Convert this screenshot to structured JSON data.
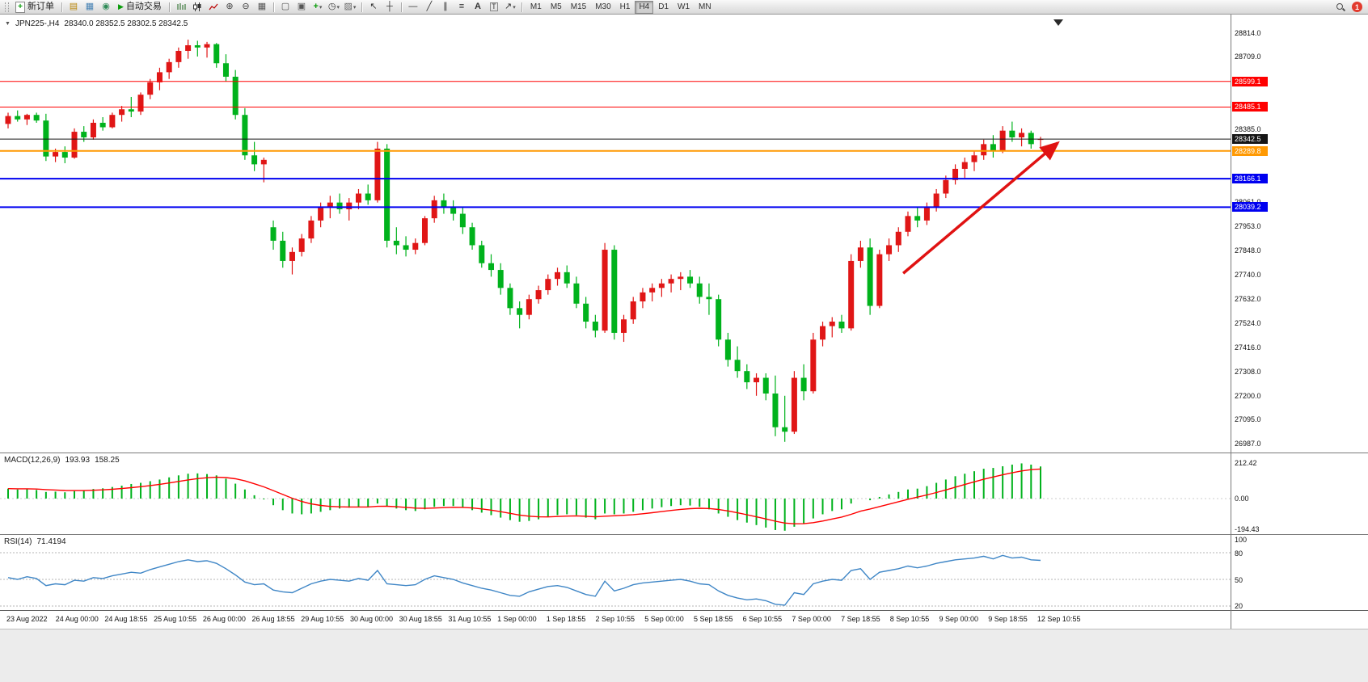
{
  "toolbar": {
    "new_order_label": "新订单",
    "autotrading_label": "自动交易",
    "timeframes": [
      "M1",
      "M5",
      "M15",
      "M30",
      "H1",
      "H4",
      "D1",
      "W1",
      "MN"
    ],
    "active_timeframe": "H4",
    "notification_count": "1",
    "icon_names": [
      "new-order",
      "charts-profile",
      "market-watch",
      "navigator",
      "autotrading",
      "bar-chart",
      "candlestick-chart",
      "line-chart",
      "zoom-in",
      "zoom-out",
      "tile-windows",
      "cascade-windows",
      "arrange-windows",
      "indicators-add",
      "periods",
      "templates",
      "cursor",
      "crosshair",
      "horizontal-line",
      "trendline",
      "equidistant-channel",
      "fibonacci",
      "text",
      "text-label",
      "arrows",
      "search",
      "notification"
    ]
  },
  "chart_header": {
    "symbol_period": "JPN225-,H4",
    "ohlc_text": "28340.0 28352.5 28302.5 28342.5"
  },
  "chart_data": {
    "type": "candlestick",
    "symbol": "JPN225-",
    "timeframe": "H4",
    "current_bar": {
      "open": 28340.0,
      "high": 28352.5,
      "low": 28302.5,
      "close": 28342.5
    },
    "up_color": "#e01616",
    "down_color": "#00b21c",
    "price_axis": {
      "min": 26987.0,
      "max": 28814.0,
      "tick_labels": [
        "28814.0",
        "28709.0",
        "28385.0",
        "28061.0",
        "27953.0",
        "27848.0",
        "27740.0",
        "27632.0",
        "27524.0",
        "27416.0",
        "27308.0",
        "27200.0",
        "27095.0",
        "26987.0"
      ]
    },
    "time_labels": [
      "23 Aug 2022",
      "24 Aug 00:00",
      "24 Aug 18:55",
      "25 Aug 10:55",
      "26 Aug 00:00",
      "26 Aug 18:55",
      "29 Aug 10:55",
      "30 Aug 00:00",
      "30 Aug 18:55",
      "31 Aug 10:55",
      "1 Sep 00:00",
      "1 Sep 18:55",
      "2 Sep 10:55",
      "5 Sep 00:00",
      "5 Sep 18:55",
      "6 Sep 10:55",
      "7 Sep 00:00",
      "7 Sep 18:55",
      "8 Sep 10:55",
      "9 Sep 00:00",
      "9 Sep 18:55",
      "12 Sep 10:55"
    ],
    "horizontal_levels": [
      {
        "price": 28599.1,
        "label": "28599.1",
        "color": "#ff0000",
        "width": 1
      },
      {
        "price": 28485.1,
        "label": "28485.1",
        "color": "#ff0000",
        "width": 1
      },
      {
        "price": 28342.5,
        "label": "28342.5",
        "color": "#161616",
        "width": 1
      },
      {
        "price": 28289.8,
        "label": "28289.8",
        "color": "#ff9902",
        "width": 2
      },
      {
        "price": 28166.1,
        "label": "28166.1",
        "color": "#0000f0",
        "width": 2
      },
      {
        "price": 28039.2,
        "label": "28039.2",
        "color": "#0000f0",
        "width": 2
      }
    ],
    "trend_arrow": {
      "from_bar": 94.5,
      "from_price": 27745,
      "to_bar": 110.8,
      "to_price": 28325,
      "color": "#e01212"
    },
    "candles_ohlc": [
      [
        28410,
        28460,
        28390,
        28445
      ],
      [
        28445,
        28470,
        28420,
        28430
      ],
      [
        28430,
        28455,
        28405,
        28450
      ],
      [
        28450,
        28460,
        28415,
        28425
      ],
      [
        28425,
        28455,
        28245,
        28265
      ],
      [
        28265,
        28300,
        28240,
        28285
      ],
      [
        28285,
        28310,
        28235,
        28260
      ],
      [
        28260,
        28390,
        28255,
        28375
      ],
      [
        28375,
        28400,
        28330,
        28350
      ],
      [
        28350,
        28430,
        28340,
        28415
      ],
      [
        28415,
        28440,
        28380,
        28395
      ],
      [
        28395,
        28460,
        28390,
        28450
      ],
      [
        28450,
        28490,
        28420,
        28475
      ],
      [
        28475,
        28530,
        28440,
        28465
      ],
      [
        28465,
        28550,
        28450,
        28540
      ],
      [
        28540,
        28610,
        28520,
        28595
      ],
      [
        28595,
        28660,
        28560,
        28640
      ],
      [
        28640,
        28700,
        28610,
        28685
      ],
      [
        28685,
        28750,
        28660,
        28735
      ],
      [
        28735,
        28785,
        28700,
        28760
      ],
      [
        28760,
        28780,
        28710,
        28750
      ],
      [
        28750,
        28775,
        28705,
        28765
      ],
      [
        28765,
        28770,
        28660,
        28680
      ],
      [
        28680,
        28720,
        28600,
        28620
      ],
      [
        28620,
        28650,
        28430,
        28450
      ],
      [
        28450,
        28480,
        28250,
        28270
      ],
      [
        28270,
        28330,
        28200,
        28230
      ],
      [
        28230,
        28260,
        28150,
        28250
      ],
      [
        27950,
        27980,
        27850,
        27890
      ],
      [
        27890,
        27930,
        27770,
        27800
      ],
      [
        27800,
        27860,
        27740,
        27840
      ],
      [
        27840,
        27920,
        27820,
        27900
      ],
      [
        27900,
        28000,
        27880,
        27980
      ],
      [
        27980,
        28060,
        27950,
        28040
      ],
      [
        28040,
        28090,
        27990,
        28060
      ],
      [
        28060,
        28100,
        28010,
        28030
      ],
      [
        28030,
        28080,
        27980,
        28060
      ],
      [
        28060,
        28120,
        28030,
        28100
      ],
      [
        28100,
        28140,
        28050,
        28070
      ],
      [
        28070,
        28330,
        28060,
        28300
      ],
      [
        28300,
        28320,
        27860,
        27890
      ],
      [
        27890,
        27950,
        27830,
        27870
      ],
      [
        27870,
        27910,
        27820,
        27850
      ],
      [
        27850,
        27900,
        27830,
        27880
      ],
      [
        27880,
        28000,
        27870,
        27990
      ],
      [
        27990,
        28090,
        27970,
        28070
      ],
      [
        28070,
        28100,
        28010,
        28040
      ],
      [
        28040,
        28070,
        27980,
        28010
      ],
      [
        28010,
        28040,
        27920,
        27950
      ],
      [
        27950,
        27970,
        27850,
        27870
      ],
      [
        27870,
        27890,
        27770,
        27790
      ],
      [
        27790,
        27830,
        27730,
        27760
      ],
      [
        27760,
        27790,
        27650,
        27680
      ],
      [
        27680,
        27700,
        27560,
        27590
      ],
      [
        27590,
        27620,
        27500,
        27560
      ],
      [
        27560,
        27650,
        27540,
        27630
      ],
      [
        27630,
        27690,
        27610,
        27670
      ],
      [
        27670,
        27740,
        27650,
        27720
      ],
      [
        27720,
        27770,
        27690,
        27750
      ],
      [
        27750,
        27780,
        27680,
        27700
      ],
      [
        27700,
        27730,
        27590,
        27610
      ],
      [
        27610,
        27640,
        27500,
        27530
      ],
      [
        27530,
        27560,
        27460,
        27490
      ],
      [
        27490,
        27880,
        27480,
        27850
      ],
      [
        27850,
        27870,
        27450,
        27480
      ],
      [
        27480,
        27560,
        27440,
        27540
      ],
      [
        27540,
        27640,
        27520,
        27620
      ],
      [
        27620,
        27680,
        27590,
        27660
      ],
      [
        27660,
        27700,
        27620,
        27680
      ],
      [
        27680,
        27720,
        27640,
        27700
      ],
      [
        27700,
        27740,
        27660,
        27720
      ],
      [
        27720,
        27750,
        27670,
        27730
      ],
      [
        27730,
        27760,
        27680,
        27700
      ],
      [
        27700,
        27730,
        27610,
        27640
      ],
      [
        27640,
        27700,
        27560,
        27630
      ],
      [
        27630,
        27650,
        27420,
        27450
      ],
      [
        27450,
        27480,
        27330,
        27360
      ],
      [
        27360,
        27420,
        27280,
        27310
      ],
      [
        27310,
        27340,
        27230,
        27260
      ],
      [
        27260,
        27300,
        27200,
        27280
      ],
      [
        27280,
        27300,
        27180,
        27210
      ],
      [
        27210,
        27290,
        27020,
        27060
      ],
      [
        27060,
        27200,
        26995,
        27040
      ],
      [
        27040,
        27310,
        27030,
        27280
      ],
      [
        27280,
        27340,
        27180,
        27220
      ],
      [
        27220,
        27480,
        27210,
        27450
      ],
      [
        27450,
        27530,
        27420,
        27510
      ],
      [
        27510,
        27550,
        27460,
        27530
      ],
      [
        27530,
        27560,
        27480,
        27500
      ],
      [
        27500,
        27830,
        27490,
        27800
      ],
      [
        27800,
        27890,
        27770,
        27860
      ],
      [
        27860,
        27900,
        27560,
        27600
      ],
      [
        27600,
        27850,
        27590,
        27830
      ],
      [
        27830,
        27900,
        27800,
        27870
      ],
      [
        27870,
        27950,
        27840,
        27930
      ],
      [
        27930,
        28020,
        27910,
        28000
      ],
      [
        28000,
        28040,
        27950,
        27980
      ],
      [
        27980,
        28060,
        27960,
        28040
      ],
      [
        28040,
        28120,
        28020,
        28100
      ],
      [
        28100,
        28180,
        28080,
        28160
      ],
      [
        28160,
        28230,
        28140,
        28210
      ],
      [
        28210,
        28260,
        28170,
        28240
      ],
      [
        28240,
        28290,
        28200,
        28270
      ],
      [
        28270,
        28340,
        28250,
        28320
      ],
      [
        28320,
        28360,
        28260,
        28290
      ],
      [
        28290,
        28400,
        28280,
        28380
      ],
      [
        28380,
        28420,
        28330,
        28350
      ],
      [
        28350,
        28390,
        28310,
        28370
      ],
      [
        28370,
        28380,
        28300,
        28320
      ],
      [
        28340,
        28352.5,
        28302.5,
        28342.5
      ]
    ],
    "indicators": [
      {
        "name": "MACD(12,26,9)",
        "values_text": [
          "193.93",
          "158.25"
        ],
        "scale_labels": [
          "212.42",
          "0.00",
          "-194.43"
        ],
        "scale_max": 212.42,
        "scale_min": -194.43,
        "histogram_color": "#00b21c",
        "signal_color": "#ff0000",
        "signal_ema_period": 9,
        "histogram": [
          60,
          55,
          58,
          52,
          40,
          42,
          38,
          45,
          50,
          58,
          62,
          70,
          78,
          88,
          95,
          105,
          115,
          128,
          140,
          150,
          152,
          148,
          140,
          120,
          90,
          55,
          20,
          -5,
          -40,
          -70,
          -90,
          -95,
          -90,
          -80,
          -70,
          -60,
          -55,
          -50,
          -52,
          -30,
          -45,
          -60,
          -70,
          -75,
          -65,
          -50,
          -45,
          -45,
          -55,
          -70,
          -85,
          -100,
          -115,
          -130,
          -140,
          -135,
          -125,
          -112,
          -100,
          -95,
          -100,
          -115,
          -125,
          -90,
          -95,
          -90,
          -80,
          -70,
          -60,
          -52,
          -45,
          -40,
          -42,
          -50,
          -65,
          -90,
          -110,
          -130,
          -145,
          -160,
          -175,
          -190,
          -194,
          -170,
          -150,
          -120,
          -95,
          -75,
          -65,
          -30,
          0,
          -10,
          10,
          25,
          40,
          55,
          60,
          75,
          95,
          115,
          135,
          150,
          165,
          180,
          185,
          195,
          205,
          212.42,
          205,
          193.93
        ]
      },
      {
        "name": "RSI(14)",
        "values_text": [
          "71.4194"
        ],
        "scale_labels": [
          "100",
          "80",
          "50",
          "20"
        ],
        "levels": [
          80,
          50,
          20
        ],
        "line_color": "#3f86c6",
        "values": [
          52,
          50,
          53,
          51,
          43,
          45,
          44,
          49,
          48,
          52,
          51,
          54,
          56,
          58,
          57,
          61,
          64,
          67,
          70,
          72,
          70,
          71,
          68,
          62,
          55,
          47,
          44,
          45,
          38,
          36,
          35,
          40,
          45,
          48,
          50,
          49,
          48,
          51,
          49,
          60,
          45,
          44,
          43,
          44,
          50,
          54,
          52,
          50,
          46,
          43,
          40,
          38,
          35,
          32,
          31,
          36,
          39,
          42,
          43,
          41,
          37,
          33,
          31,
          48,
          37,
          40,
          44,
          46,
          47,
          48,
          49,
          50,
          48,
          45,
          44,
          37,
          32,
          29,
          27,
          28,
          26,
          22,
          21,
          35,
          33,
          45,
          48,
          50,
          49,
          60,
          62,
          50,
          58,
          60,
          62,
          65,
          63,
          65,
          68,
          70,
          72,
          73,
          74,
          76,
          73,
          77,
          74,
          75,
          72,
          71.4
        ]
      }
    ]
  }
}
